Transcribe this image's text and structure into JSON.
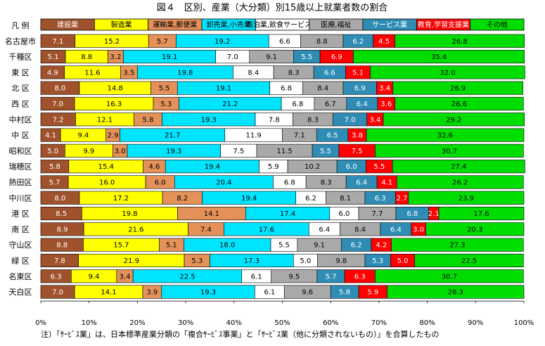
{
  "chart_data": {
    "type": "bar",
    "orientation": "horizontal",
    "stacked": "percent",
    "title": "図４　区別、産業（大分類）別15歳以上就業者数の割合",
    "legend_label": "凡 例",
    "legend_placement": "top",
    "categories": [
      "名古屋市",
      "千種区",
      "東 区",
      "北 区",
      "西 区",
      "中村区",
      "中 区",
      "昭和区",
      "瑞穂区",
      "熱田区",
      "中川区",
      "港 区",
      "南 区",
      "守山区",
      "緑 区",
      "名東区",
      "天白区"
    ],
    "series": [
      {
        "name": "建設業",
        "color": "#A0522D",
        "text_color": "#ffffff",
        "values": [
          7.1,
          5.1,
          4.9,
          8.0,
          7.0,
          7.2,
          4.1,
          5.0,
          5.8,
          5.7,
          8.0,
          8.5,
          8.9,
          8.8,
          7.8,
          6.3,
          7.0
        ]
      },
      {
        "name": "製造業",
        "color": "#FFFF00",
        "text_color": "#000000",
        "values": [
          15.2,
          8.8,
          11.6,
          14.8,
          16.3,
          12.1,
          9.4,
          9.9,
          15.4,
          16.0,
          17.2,
          19.8,
          21.6,
          15.7,
          21.9,
          9.4,
          14.1
        ]
      },
      {
        "name": "運輸業,郵便業",
        "color": "#E4915A",
        "text_color": "#000000",
        "values": [
          5.7,
          3.2,
          3.5,
          5.5,
          5.3,
          5.8,
          2.9,
          3.0,
          4.6,
          6.0,
          8.2,
          14.1,
          7.4,
          5.1,
          5.3,
          3.4,
          3.9
        ]
      },
      {
        "name": "卸売業,小売業",
        "color": "#00E5FF",
        "text_color": "#000000",
        "values": [
          19.2,
          19.1,
          19.8,
          19.1,
          21.2,
          19.3,
          21.7,
          19.3,
          19.4,
          20.4,
          19.4,
          17.4,
          17.6,
          18.0,
          17.3,
          22.5,
          19.3
        ]
      },
      {
        "name": "宿泊業,飲食サービス業",
        "color": "#FFFFFF",
        "text_color": "#000000",
        "values": [
          6.6,
          7.0,
          8.4,
          6.8,
          6.8,
          7.8,
          11.9,
          7.5,
          5.9,
          6.8,
          6.2,
          6.0,
          6.4,
          5.5,
          5.0,
          6.1,
          6.1
        ]
      },
      {
        "name": "医療,福祉",
        "color": "#A9A9A9",
        "text_color": "#000000",
        "values": [
          8.8,
          9.1,
          8.3,
          8.4,
          6.7,
          8.3,
          7.1,
          11.5,
          10.2,
          8.3,
          8.1,
          7.7,
          8.4,
          9.1,
          9.8,
          9.5,
          9.6
        ]
      },
      {
        "name": "サービス業",
        "color": "#2F8DB5",
        "text_color": "#ffffff",
        "values": [
          6.2,
          5.5,
          6.6,
          6.9,
          6.4,
          7.0,
          6.5,
          5.5,
          6.0,
          6.4,
          6.3,
          6.8,
          6.4,
          6.2,
          5.3,
          5.7,
          5.8
        ]
      },
      {
        "name": "教育,学習支援業",
        "color": "#FF0000",
        "text_color": "#ffffff",
        "values": [
          4.5,
          6.9,
          5.1,
          3.4,
          3.6,
          3.4,
          3.8,
          7.5,
          5.5,
          4.1,
          2.7,
          2.1,
          3.0,
          4.2,
          5.0,
          6.3,
          5.9
        ]
      },
      {
        "name": "その他",
        "color": "#00DD00",
        "text_color": "#000000",
        "values": [
          26.8,
          35.4,
          32.0,
          26.9,
          26.6,
          29.2,
          32.6,
          30.7,
          27.4,
          26.2,
          23.9,
          17.6,
          20.3,
          27.3,
          22.5,
          30.7,
          28.3
        ]
      }
    ],
    "xlim": [
      0,
      100
    ],
    "x_ticks": [
      "0%",
      "10%",
      "20%",
      "30%",
      "40%",
      "50%",
      "60%",
      "70%",
      "80%",
      "90%",
      "100%"
    ],
    "grid": false,
    "footnote": "注）「ｻｰﾋﾞｽ業」は、日本標準産業分類の「複合ｻｰﾋﾞｽ事業」と「ｻｰﾋﾞｽ業（他に分類されないもの）」を合算したもの"
  }
}
